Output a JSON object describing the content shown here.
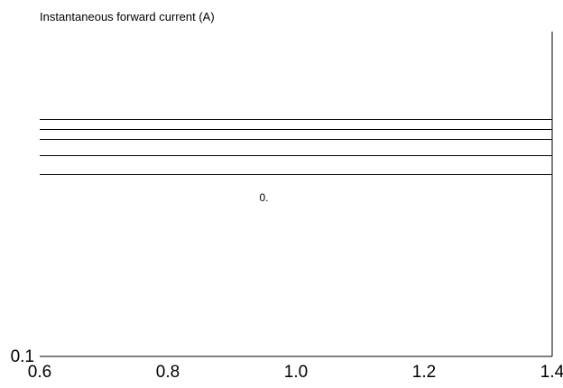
{
  "chart_data": {
    "type": "line",
    "title": "",
    "xlabel": "",
    "ylabel": "Instantaneous forward current (A)",
    "xlim": [
      0.6,
      1.4
    ],
    "x_ticks": [
      "0.6",
      "0.8",
      "1.0",
      "1.2",
      "1.4"
    ],
    "y_ticks": [
      "0.1"
    ],
    "grid": false,
    "colors": {
      "line": "#000000",
      "background": "#ffffff"
    },
    "series": [
      {
        "x": [
          0.6,
          1.4
        ],
        "y_level": 0.73
      },
      {
        "x": [
          0.6,
          1.4
        ],
        "y_level": 0.7
      },
      {
        "x": [
          0.6,
          1.4
        ],
        "y_level": 0.67
      },
      {
        "x": [
          0.6,
          1.4
        ],
        "y_level": 0.62
      },
      {
        "x": [
          0.6,
          1.4
        ],
        "y_level": 0.56
      }
    ],
    "annotations": [
      {
        "text": "0.",
        "x": 0.95,
        "y_level": 0.5
      }
    ]
  }
}
